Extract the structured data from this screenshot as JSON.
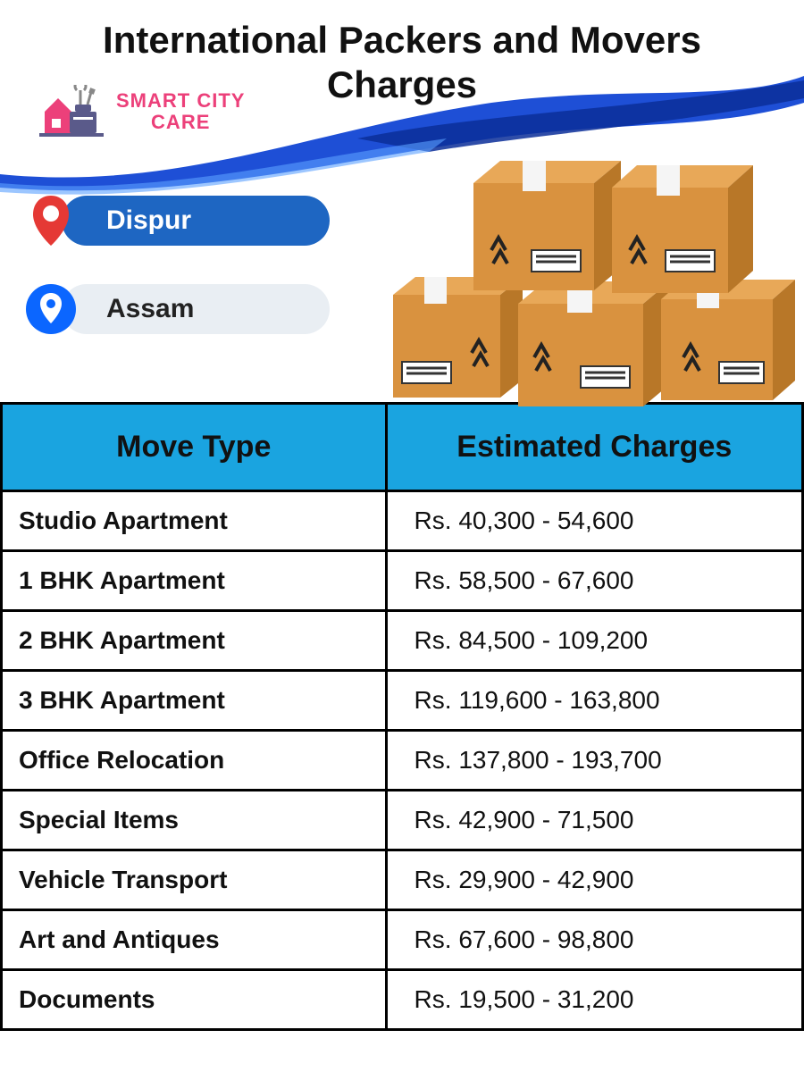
{
  "title": "International Packers and Movers Charges",
  "logo": {
    "line1": "SMART CITY",
    "line2": "CARE",
    "text_color": "#ec407a",
    "house_color": "#ec407a",
    "toolbox_color": "#5a5a8a",
    "tool_color": "#888"
  },
  "swoosh": {
    "color_main": "#1e4fd6",
    "color_dark": "#0b2e99"
  },
  "location": {
    "city": "Dispur",
    "state": "Assam",
    "city_pill_bg": "#1e66c2",
    "city_pill_fg": "#ffffff",
    "state_pill_bg": "#e9eef3",
    "state_pill_fg": "#222222",
    "pin_city_color": "#e53935",
    "pin_state_outer": "#0b66ff",
    "pin_state_inner": "#ffffff"
  },
  "boxes": {
    "box_color": "#d9923f",
    "box_top": "#e8a858",
    "box_shadow": "#a86d27",
    "tape_color": "#f5f5f5",
    "label_bg": "#ffffff",
    "arrow_color": "#222222"
  },
  "table": {
    "header_bg": "#1aa4e0",
    "border_color": "#000000",
    "columns": [
      "Move Type",
      "Estimated Charges"
    ],
    "rows": [
      [
        "Studio Apartment",
        "Rs. 40,300 - 54,600"
      ],
      [
        "1 BHK Apartment",
        "Rs. 58,500 - 67,600"
      ],
      [
        "2 BHK Apartment",
        "Rs. 84,500 - 109,200"
      ],
      [
        "3 BHK Apartment",
        "Rs. 119,600 - 163,800"
      ],
      [
        "Office Relocation",
        "Rs. 137,800 - 193,700"
      ],
      [
        "Special Items",
        "Rs. 42,900 - 71,500"
      ],
      [
        "Vehicle Transport",
        "Rs. 29,900 - 42,900"
      ],
      [
        "Art and Antiques",
        "Rs. 67,600 - 98,800"
      ],
      [
        "Documents",
        "Rs. 19,500 - 31,200"
      ]
    ]
  }
}
